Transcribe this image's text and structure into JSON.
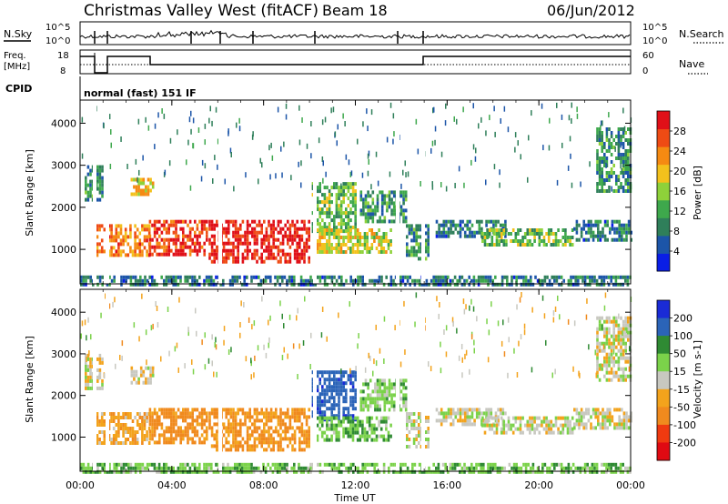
{
  "header": {
    "title": "Christmas Valley West (fitACF)",
    "beam": "Beam 18",
    "date": "06/Jun/2012"
  },
  "status_panels": {
    "nsky_label": "N.Sky",
    "nsky_ticks": [
      "10^5",
      "10^0"
    ],
    "nsearch_label": "N.Search",
    "nsearch_ticks": [
      "10^5",
      "10^0"
    ],
    "freq_label_1": "Freq.",
    "freq_label_2": "[MHz]",
    "freq_ticks": [
      "18",
      "8"
    ],
    "nave_label": "Nave",
    "nave_ticks": [
      "60",
      "0"
    ],
    "cpid_label": "CPID",
    "cpid_value": "normal (fast) 151 IF"
  },
  "chart_data": [
    {
      "type": "heatmap",
      "name": "power",
      "ylabel": "Slant Range [km]",
      "yticks": [
        "4000",
        "3000",
        "2000",
        "1000"
      ],
      "ytick_values": [
        4000,
        3000,
        2000,
        1000
      ],
      "ylim": [
        180,
        4550
      ],
      "xlim": [
        0,
        24
      ],
      "colorbar_label": "Power [dB]",
      "colorbar_ticks": [
        "28",
        "24",
        "20",
        "16",
        "12",
        "8",
        "4"
      ],
      "colorbar_values": [
        28,
        24,
        20,
        16,
        12,
        8,
        4
      ],
      "colorbar_range": [
        0,
        32
      ],
      "colors": [
        "#0a1ee6",
        "#1c55a8",
        "#2f7f5a",
        "#3ea84c",
        "#8ed13a",
        "#f3c11c",
        "#f58a12",
        "#ef4b14",
        "#e01018"
      ]
    },
    {
      "type": "heatmap",
      "name": "velocity",
      "ylabel": "Slant Range [km]",
      "yticks": [
        "4000",
        "3000",
        "2000",
        "1000"
      ],
      "ytick_values": [
        4000,
        3000,
        2000,
        1000
      ],
      "ylim": [
        180,
        4550
      ],
      "xlim": [
        0,
        24
      ],
      "colorbar_label": "Velocity [m s-1]",
      "colorbar_ticks": [
        "200",
        "100",
        "50",
        "15",
        "-15",
        "-50",
        "-100",
        "-200"
      ],
      "colorbar_colors": [
        "#1a2bd6",
        "#2b64b8",
        "#2f8a33",
        "#7bd24a",
        "#c8c8c0",
        "#f3a31c",
        "#f08a1e",
        "#ef3a10",
        "#e00a12"
      ]
    }
  ],
  "xaxis": {
    "label": "Time UT",
    "ticks": [
      "00:00",
      "04:00",
      "08:00",
      "12:00",
      "16:00",
      "20:00",
      "00:00"
    ],
    "tick_values": [
      0,
      4,
      8,
      12,
      16,
      20,
      24
    ]
  }
}
